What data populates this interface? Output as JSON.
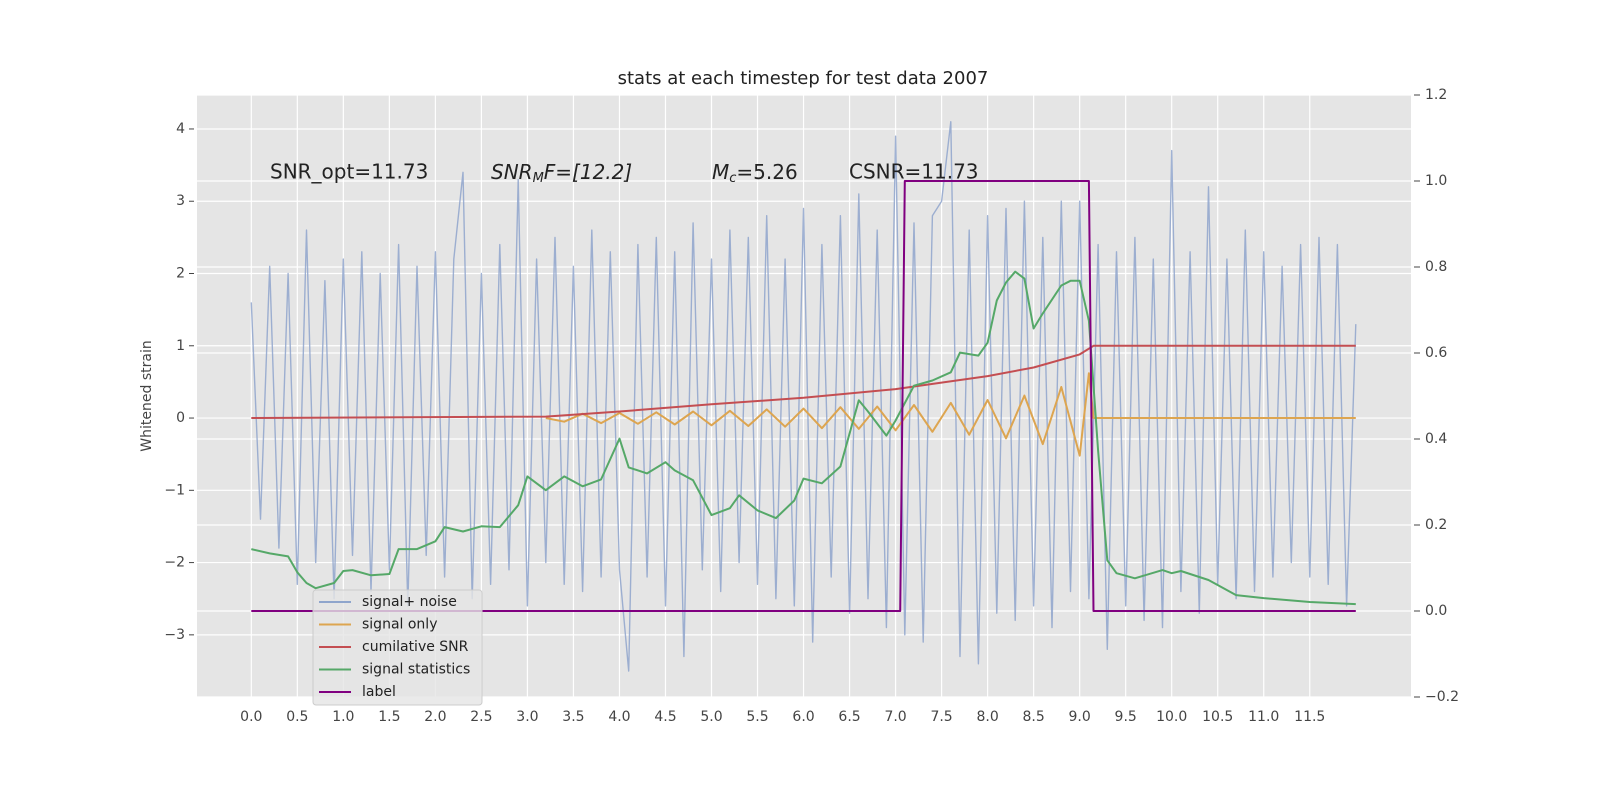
{
  "chart_data": {
    "type": "line",
    "title": "stats at each timestep for test data 2007",
    "ylabel": "Whitened strain",
    "annotations": {
      "snr_opt": "SNR_opt=11.73",
      "snr_mf": {
        "base": "SNR",
        "sub": "M",
        "rest": "F=[12.2]"
      },
      "mc": {
        "base": "M",
        "sub": "c",
        "rest": "=5.26"
      },
      "csnr": "CSNR=11.73"
    },
    "xlim": [
      -0.59,
      12.6
    ],
    "ylim": [
      -3.86,
      4.47
    ],
    "y2lim": [
      -0.2,
      1.2
    ],
    "xticks": [
      {
        "value": 0,
        "label": "0.0"
      },
      0.5,
      {
        "value": 1,
        "label": "1.0"
      },
      1.5,
      {
        "value": 2,
        "label": "2.0"
      },
      2.5,
      {
        "value": 3,
        "label": "3.0"
      },
      3.5,
      {
        "value": 4,
        "label": "4.0"
      },
      4.5,
      {
        "value": 5,
        "label": "5.0"
      },
      5.5,
      {
        "value": 6,
        "label": "6.0"
      },
      6.5,
      {
        "value": 7,
        "label": "7.0"
      },
      7.5,
      {
        "value": 8,
        "label": "8.0"
      },
      8.5,
      {
        "value": 9,
        "label": "9.0"
      },
      9.5,
      {
        "value": 10,
        "label": "10.0"
      },
      10.5,
      {
        "value": 11,
        "label": "11.0"
      },
      11.5
    ],
    "yticks": [
      {
        "value": -3,
        "label": "−3"
      },
      {
        "value": -2,
        "label": "−2"
      },
      {
        "value": -1,
        "label": "−1"
      },
      0,
      1,
      2,
      3,
      4
    ],
    "y2ticks": [
      {
        "value": -0.2,
        "label": "−0.2"
      },
      {
        "value": 0,
        "label": "0.0"
      },
      0.2,
      0.4,
      0.6,
      0.8,
      {
        "value": 1,
        "label": "1.0"
      },
      1.2
    ],
    "grid": true,
    "legend": "lower left",
    "series": [
      {
        "name": "signal+ noise",
        "color": "#8fa5cc",
        "axis": "y",
        "x": [
          0,
          0.1,
          0.2,
          0.3,
          0.4,
          0.5,
          0.6,
          0.7,
          0.8,
          0.9,
          1,
          1.1,
          1.2,
          1.3,
          1.4,
          1.5,
          1.6,
          1.7,
          1.8,
          1.9,
          2,
          2.1,
          2.2,
          2.3,
          2.4,
          2.5,
          2.6,
          2.7,
          2.8,
          2.9,
          3,
          3.1,
          3.2,
          3.3,
          3.4,
          3.5,
          3.6,
          3.7,
          3.8,
          3.9,
          4,
          4.1,
          4.2,
          4.3,
          4.4,
          4.5,
          4.6,
          4.7,
          4.8,
          4.9,
          5,
          5.1,
          5.2,
          5.3,
          5.4,
          5.5,
          5.6,
          5.7,
          5.8,
          5.9,
          6,
          6.1,
          6.2,
          6.3,
          6.4,
          6.5,
          6.6,
          6.7,
          6.8,
          6.9,
          7,
          7.1,
          7.2,
          7.3,
          7.4,
          7.5,
          7.6,
          7.7,
          7.8,
          7.9,
          8,
          8.1,
          8.2,
          8.3,
          8.4,
          8.5,
          8.6,
          8.7,
          8.8,
          8.9,
          9,
          9.1,
          9.2,
          9.3,
          9.4,
          9.5,
          9.6,
          9.7,
          9.8,
          9.9,
          10,
          10.1,
          10.2,
          10.3,
          10.4,
          10.5,
          10.6,
          10.7,
          10.8,
          10.9,
          11,
          11.1,
          11.2,
          11.3,
          11.4,
          11.5,
          11.6,
          11.7,
          11.8,
          11.9,
          12
        ],
        "values": [
          1.6,
          -1.4,
          2.1,
          -1.8,
          2.0,
          -2.3,
          2.6,
          -2.0,
          1.9,
          -2.5,
          2.2,
          -1.9,
          2.3,
          -2.4,
          2.0,
          -2.1,
          2.4,
          -2.6,
          2.1,
          -1.9,
          2.3,
          -2.2,
          2.2,
          3.4,
          -2.5,
          2.0,
          -2.3,
          2.4,
          -2.1,
          3.3,
          -2.6,
          2.2,
          -2.0,
          2.5,
          -2.3,
          2.1,
          -2.4,
          2.6,
          -2.2,
          2.3,
          -2.1,
          -3.5,
          2.4,
          -2.2,
          2.5,
          -2.6,
          2.3,
          -3.3,
          2.7,
          -2.1,
          2.2,
          -2.4,
          2.6,
          -2.0,
          2.5,
          -2.3,
          2.8,
          -2.5,
          2.2,
          -2.6,
          2.9,
          -3.1,
          2.4,
          -2.2,
          2.8,
          -2.7,
          3.1,
          -2.5,
          2.6,
          -2.9,
          3.9,
          -3.0,
          2.7,
          -3.1,
          2.8,
          3.0,
          4.1,
          -3.3,
          2.6,
          -3.4,
          2.8,
          -2.7,
          2.9,
          -2.8,
          3.0,
          -2.6,
          2.5,
          -2.9,
          3.0,
          -2.4,
          3.0,
          -2.5,
          2.4,
          -3.2,
          2.3,
          -2.6,
          2.5,
          -2.8,
          2.2,
          -2.9,
          3.7,
          -2.4,
          2.3,
          -2.7,
          3.2,
          -2.3,
          2.2,
          -2.5,
          2.6,
          -2.4,
          2.3,
          -2.2,
          2.1,
          -2.0,
          2.4,
          -2.2,
          2.5,
          -2.3,
          2.4,
          -2.6,
          1.3
        ]
      },
      {
        "name": "signal only",
        "color": "#dda550",
        "axis": "y",
        "x": [
          3.2,
          3.4,
          3.6,
          3.8,
          4.0,
          4.2,
          4.4,
          4.6,
          4.8,
          5.0,
          5.2,
          5.4,
          5.6,
          5.8,
          6.0,
          6.2,
          6.4,
          6.6,
          6.8,
          7.0,
          7.2,
          7.4,
          7.6,
          7.8,
          8.0,
          8.2,
          8.4,
          8.6,
          8.8,
          9.0,
          9.1,
          9.15,
          12.0
        ],
        "values": [
          0,
          -0.05,
          0.06,
          -0.07,
          0.07,
          -0.08,
          0.08,
          -0.09,
          0.09,
          -0.1,
          0.1,
          -0.11,
          0.12,
          -0.12,
          0.13,
          -0.14,
          0.15,
          -0.15,
          0.16,
          -0.17,
          0.18,
          -0.19,
          0.21,
          -0.23,
          0.25,
          -0.28,
          0.31,
          -0.36,
          0.43,
          -0.52,
          0.62,
          0,
          0
        ]
      },
      {
        "name": "cumilative SNR",
        "color": "#c44e52",
        "axis": "y",
        "x": [
          0,
          3.2,
          4,
          5,
          6,
          7,
          8,
          8.5,
          9.0,
          9.15,
          12.0
        ],
        "values": [
          0,
          0.02,
          0.09,
          0.19,
          0.28,
          0.4,
          0.58,
          0.7,
          0.88,
          1.0,
          1.0
        ]
      },
      {
        "name": "signal statistics",
        "color": "#55a868",
        "axis": "y2",
        "x": [
          0,
          0.2,
          0.4,
          0.5,
          0.6,
          0.7,
          0.9,
          1.0,
          1.1,
          1.3,
          1.5,
          1.6,
          1.8,
          2.0,
          2.1,
          2.3,
          2.5,
          2.7,
          2.9,
          3.0,
          3.2,
          3.4,
          3.6,
          3.8,
          4.0,
          4.1,
          4.3,
          4.5,
          4.6,
          4.8,
          5.0,
          5.2,
          5.3,
          5.5,
          5.7,
          5.9,
          6.0,
          6.2,
          6.4,
          6.6,
          6.7,
          6.9,
          7.0,
          7.2,
          7.4,
          7.6,
          7.7,
          7.9,
          8.0,
          8.1,
          8.2,
          8.3,
          8.4,
          8.5,
          8.6,
          8.8,
          8.9,
          9.0,
          9.1,
          9.2,
          9.3,
          9.4,
          9.6,
          9.9,
          10.0,
          10.1,
          10.4,
          10.7,
          11.0,
          11.5,
          12.0
        ],
        "values": [
          0.144,
          0.134,
          0.127,
          0.09,
          0.065,
          0.053,
          0.065,
          0.093,
          0.095,
          0.083,
          0.086,
          0.144,
          0.144,
          0.162,
          0.195,
          0.185,
          0.197,
          0.195,
          0.246,
          0.313,
          0.281,
          0.313,
          0.29,
          0.306,
          0.401,
          0.334,
          0.32,
          0.346,
          0.327,
          0.304,
          0.223,
          0.239,
          0.269,
          0.234,
          0.216,
          0.257,
          0.308,
          0.297,
          0.336,
          0.49,
          0.464,
          0.408,
          0.443,
          0.524,
          0.536,
          0.555,
          0.601,
          0.594,
          0.624,
          0.722,
          0.764,
          0.789,
          0.773,
          0.657,
          0.692,
          0.757,
          0.768,
          0.768,
          0.675,
          0.373,
          0.118,
          0.088,
          0.076,
          0.095,
          0.088,
          0.093,
          0.072,
          0.037,
          0.03,
          0.021,
          0.016
        ]
      },
      {
        "name": "label",
        "color": "#800080",
        "axis": "y2",
        "x": [
          0,
          7.05,
          7.1,
          9.1,
          9.15,
          12.0
        ],
        "values": [
          0,
          0,
          1,
          1,
          0,
          0
        ]
      }
    ]
  }
}
